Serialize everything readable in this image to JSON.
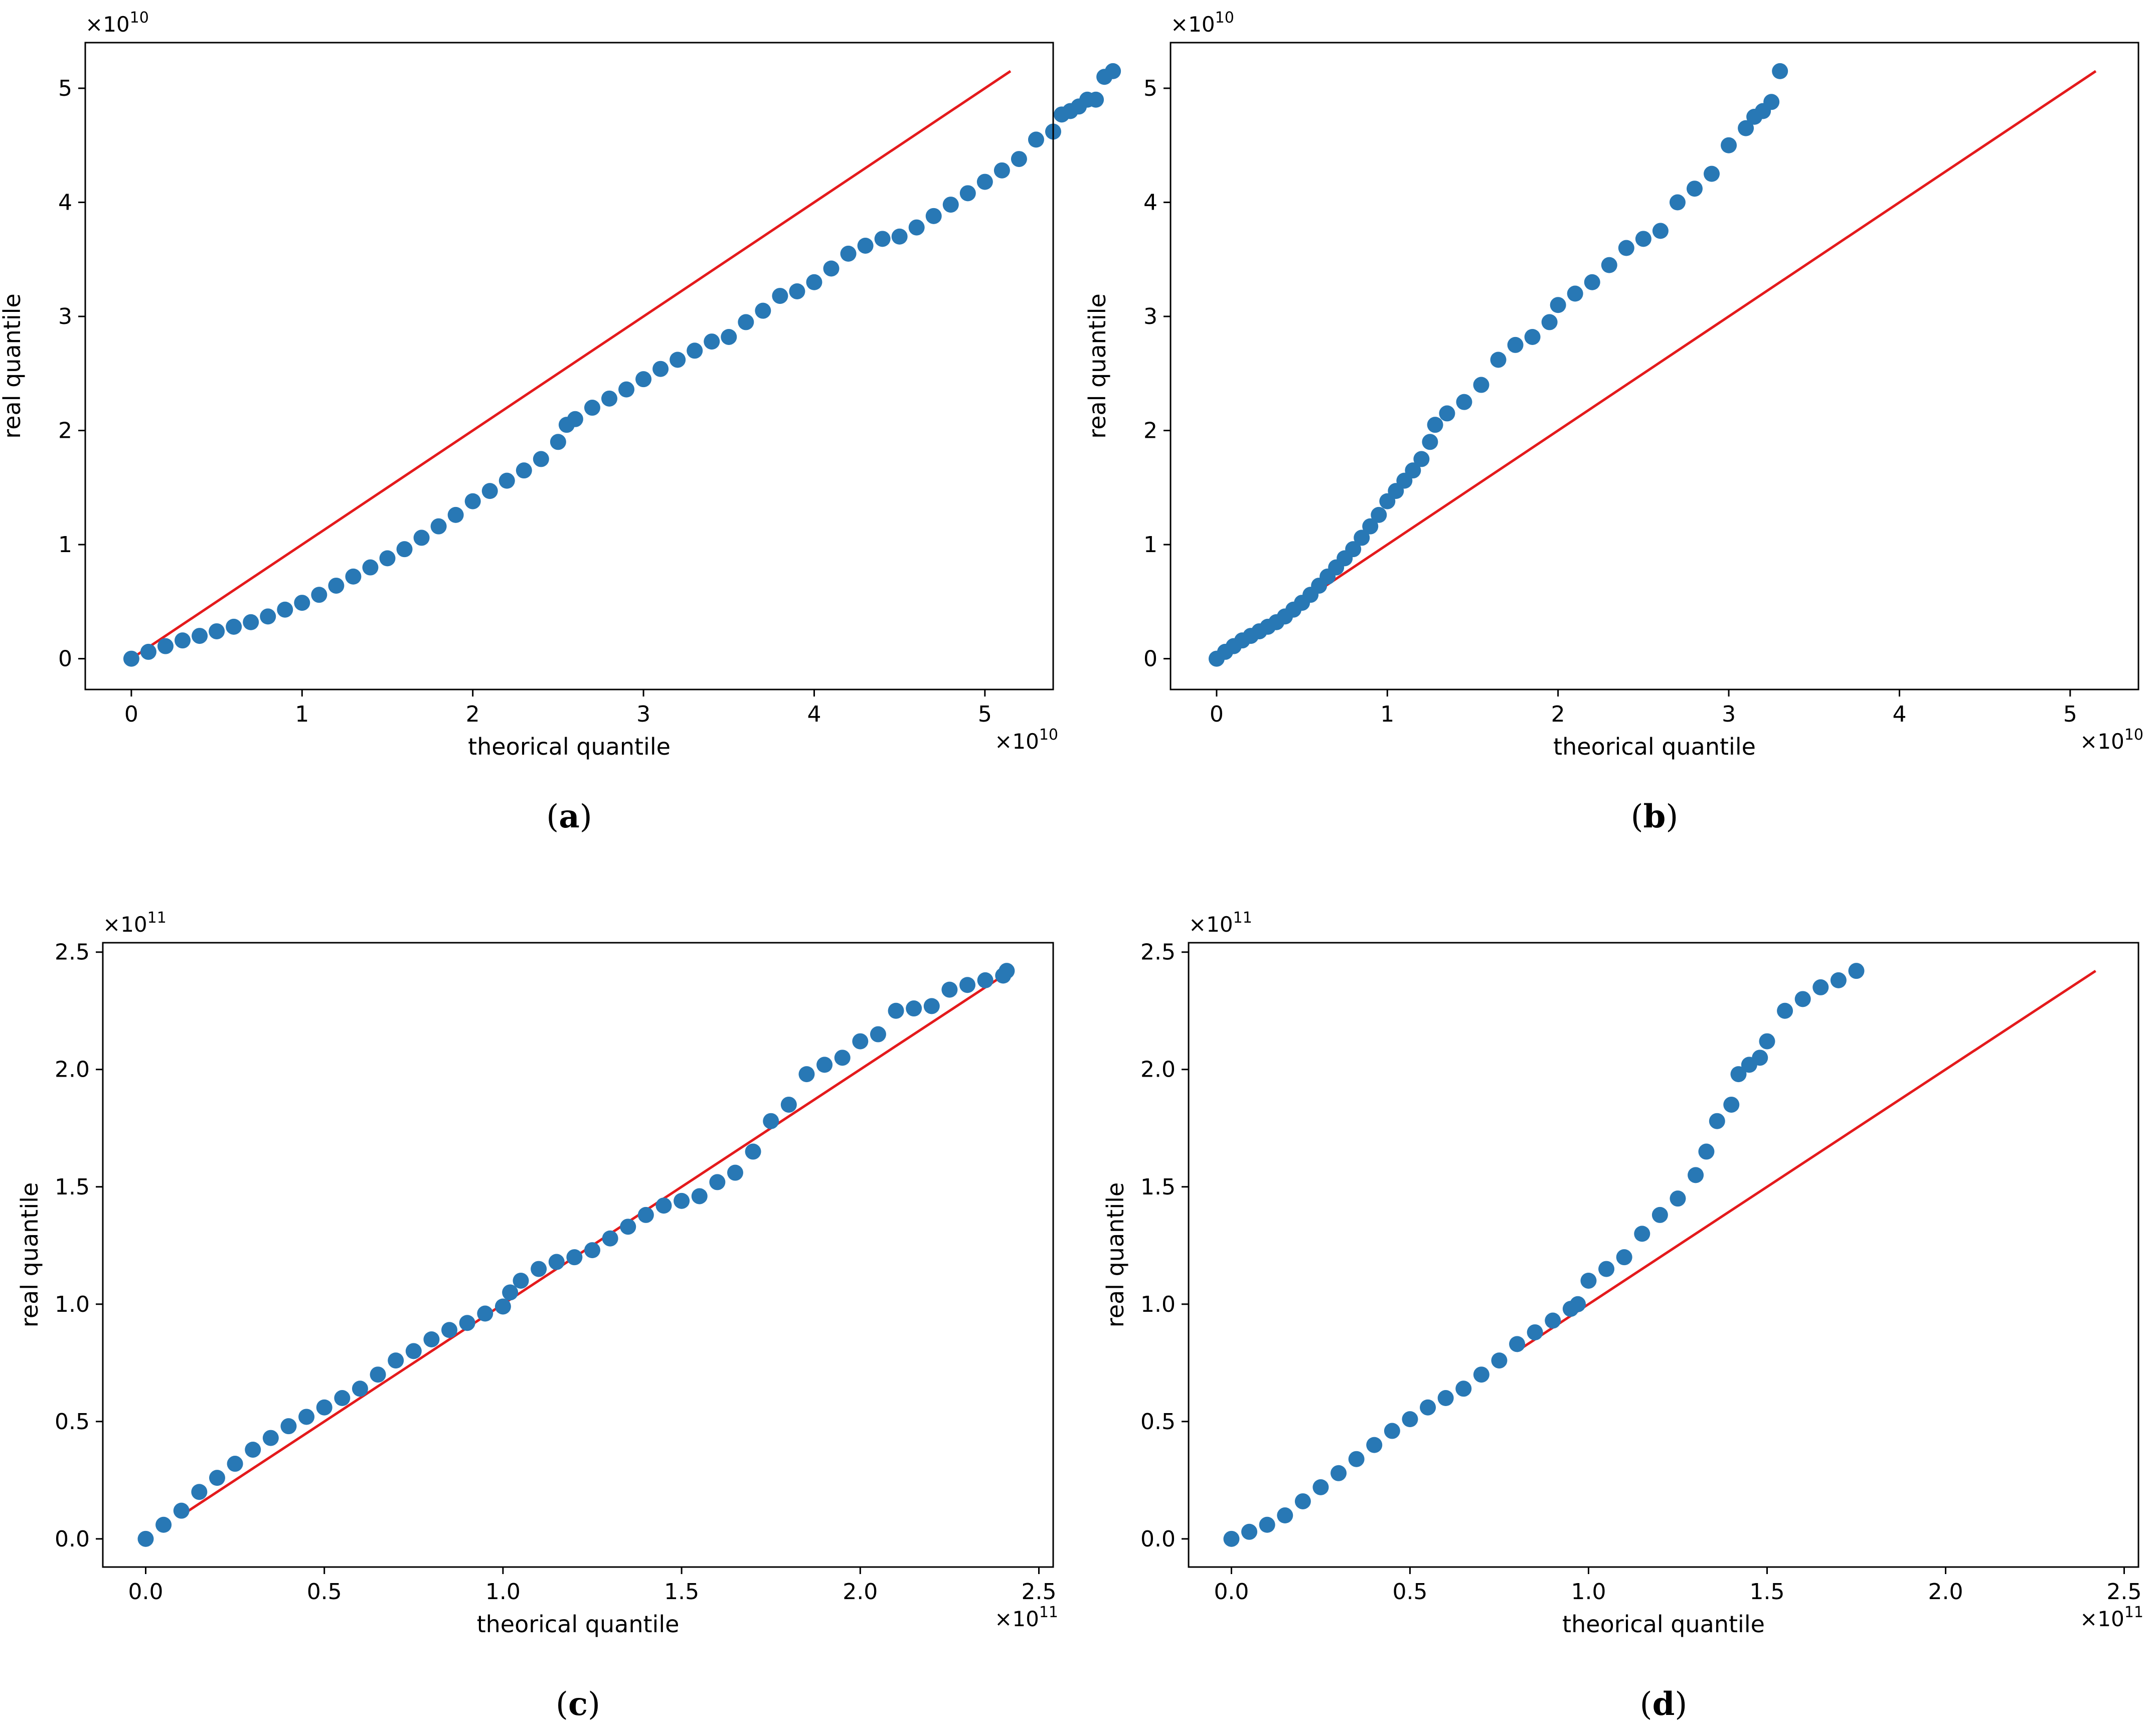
{
  "colors": {
    "points": "#2878b5",
    "reference_line": "#e41a1c",
    "axes": "#000000"
  },
  "chart_data": [
    {
      "id": "a",
      "type": "scatter",
      "caption": "a",
      "xlabel": "theorical quantile",
      "ylabel": "real quantile",
      "x_multiplier": "×10",
      "x_multiplier_exp": "10",
      "y_multiplier": "×10",
      "y_multiplier_exp": "10",
      "xlim": [
        -0.27,
        5.4
      ],
      "ylim": [
        -0.27,
        5.4
      ],
      "xticks": [
        0,
        1,
        2,
        3,
        4,
        5
      ],
      "yticks": [
        0,
        1,
        2,
        3,
        4,
        5
      ],
      "xtick_labels": [
        "0",
        "1",
        "2",
        "3",
        "4",
        "5"
      ],
      "ytick_labels": [
        "0",
        "1",
        "2",
        "3",
        "4",
        "5"
      ],
      "reference_line": [
        [
          0,
          0
        ],
        [
          5.15,
          5.15
        ]
      ],
      "series": [
        {
          "name": "quantiles",
          "points": [
            [
              0,
              0
            ],
            [
              0.1,
              0.06
            ],
            [
              0.2,
              0.11
            ],
            [
              0.3,
              0.16
            ],
            [
              0.4,
              0.2
            ],
            [
              0.5,
              0.24
            ],
            [
              0.6,
              0.28
            ],
            [
              0.7,
              0.32
            ],
            [
              0.8,
              0.37
            ],
            [
              0.9,
              0.43
            ],
            [
              1.0,
              0.49
            ],
            [
              1.1,
              0.56
            ],
            [
              1.2,
              0.64
            ],
            [
              1.3,
              0.72
            ],
            [
              1.4,
              0.8
            ],
            [
              1.5,
              0.88
            ],
            [
              1.6,
              0.96
            ],
            [
              1.7,
              1.06
            ],
            [
              1.8,
              1.16
            ],
            [
              1.9,
              1.26
            ],
            [
              2.0,
              1.38
            ],
            [
              2.1,
              1.47
            ],
            [
              2.2,
              1.56
            ],
            [
              2.3,
              1.65
            ],
            [
              2.4,
              1.75
            ],
            [
              2.5,
              1.9
            ],
            [
              2.55,
              2.05
            ],
            [
              2.6,
              2.1
            ],
            [
              2.7,
              2.2
            ],
            [
              2.8,
              2.28
            ],
            [
              2.9,
              2.36
            ],
            [
              3.0,
              2.45
            ],
            [
              3.1,
              2.54
            ],
            [
              3.2,
              2.62
            ],
            [
              3.3,
              2.7
            ],
            [
              3.4,
              2.78
            ],
            [
              3.5,
              2.82
            ],
            [
              3.6,
              2.95
            ],
            [
              3.7,
              3.05
            ],
            [
              3.8,
              3.18
            ],
            [
              3.9,
              3.22
            ],
            [
              4.0,
              3.3
            ],
            [
              4.1,
              3.42
            ],
            [
              4.2,
              3.55
            ],
            [
              4.3,
              3.62
            ],
            [
              4.4,
              3.68
            ],
            [
              4.5,
              3.7
            ],
            [
              4.6,
              3.78
            ],
            [
              4.7,
              3.88
            ],
            [
              4.8,
              3.98
            ],
            [
              4.9,
              4.08
            ],
            [
              5.0,
              4.18
            ],
            [
              5.1,
              4.28
            ],
            [
              5.2,
              4.38
            ],
            [
              5.3,
              4.55
            ],
            [
              5.4,
              4.62
            ],
            [
              5.45,
              4.77
            ],
            [
              5.5,
              4.8
            ],
            [
              5.55,
              4.84
            ],
            [
              5.6,
              4.9
            ],
            [
              5.65,
              4.9
            ],
            [
              5.7,
              5.1
            ],
            [
              5.75,
              5.15
            ]
          ]
        }
      ]
    },
    {
      "id": "b",
      "type": "scatter",
      "caption": "b",
      "xlabel": "theorical quantile",
      "ylabel": "real quantile",
      "x_multiplier": "×10",
      "x_multiplier_exp": "10",
      "y_multiplier": "×10",
      "y_multiplier_exp": "10",
      "xlim": [
        -0.27,
        5.4
      ],
      "ylim": [
        -0.27,
        5.4
      ],
      "xticks": [
        0,
        1,
        2,
        3,
        4,
        5
      ],
      "yticks": [
        0,
        1,
        2,
        3,
        4,
        5
      ],
      "xtick_labels": [
        "0",
        "1",
        "2",
        "3",
        "4",
        "5"
      ],
      "ytick_labels": [
        "0",
        "1",
        "2",
        "3",
        "4",
        "5"
      ],
      "reference_line": [
        [
          0,
          0
        ],
        [
          5.15,
          5.15
        ]
      ],
      "series": [
        {
          "name": "quantiles",
          "points": [
            [
              0,
              0
            ],
            [
              0.05,
              0.06
            ],
            [
              0.1,
              0.11
            ],
            [
              0.15,
              0.16
            ],
            [
              0.2,
              0.2
            ],
            [
              0.25,
              0.24
            ],
            [
              0.3,
              0.28
            ],
            [
              0.35,
              0.32
            ],
            [
              0.4,
              0.37
            ],
            [
              0.45,
              0.43
            ],
            [
              0.5,
              0.49
            ],
            [
              0.55,
              0.56
            ],
            [
              0.6,
              0.64
            ],
            [
              0.65,
              0.72
            ],
            [
              0.7,
              0.8
            ],
            [
              0.75,
              0.88
            ],
            [
              0.8,
              0.96
            ],
            [
              0.85,
              1.06
            ],
            [
              0.9,
              1.16
            ],
            [
              0.95,
              1.26
            ],
            [
              1.0,
              1.38
            ],
            [
              1.05,
              1.47
            ],
            [
              1.1,
              1.56
            ],
            [
              1.15,
              1.65
            ],
            [
              1.2,
              1.75
            ],
            [
              1.25,
              1.9
            ],
            [
              1.28,
              2.05
            ],
            [
              1.35,
              2.15
            ],
            [
              1.45,
              2.25
            ],
            [
              1.55,
              2.4
            ],
            [
              1.65,
              2.62
            ],
            [
              1.75,
              2.75
            ],
            [
              1.85,
              2.82
            ],
            [
              1.95,
              2.95
            ],
            [
              2.0,
              3.1
            ],
            [
              2.1,
              3.2
            ],
            [
              2.2,
              3.3
            ],
            [
              2.3,
              3.45
            ],
            [
              2.4,
              3.6
            ],
            [
              2.5,
              3.68
            ],
            [
              2.6,
              3.75
            ],
            [
              2.7,
              4.0
            ],
            [
              2.8,
              4.12
            ],
            [
              2.9,
              4.25
            ],
            [
              3.0,
              4.5
            ],
            [
              3.1,
              4.65
            ],
            [
              3.15,
              4.75
            ],
            [
              3.2,
              4.8
            ],
            [
              3.25,
              4.88
            ],
            [
              3.3,
              5.15
            ]
          ]
        }
      ]
    },
    {
      "id": "c",
      "type": "scatter",
      "caption": "c",
      "xlabel": "theorical quantile",
      "ylabel": "real quantile",
      "x_multiplier": "×10",
      "x_multiplier_exp": "11",
      "y_multiplier": "×10",
      "y_multiplier_exp": "11",
      "xlim": [
        -0.12,
        2.54
      ],
      "ylim": [
        -0.12,
        2.54
      ],
      "xticks": [
        0,
        0.5,
        1.0,
        1.5,
        2.0,
        2.5
      ],
      "yticks": [
        0,
        0.5,
        1.0,
        1.5,
        2.0,
        2.5
      ],
      "xtick_labels": [
        "0.0",
        "0.5",
        "1.0",
        "1.5",
        "2.0",
        "2.5"
      ],
      "ytick_labels": [
        "0.0",
        "0.5",
        "1.0",
        "1.5",
        "2.0",
        "2.5"
      ],
      "reference_line": [
        [
          0.1,
          0.1
        ],
        [
          2.42,
          2.42
        ]
      ],
      "series": [
        {
          "name": "quantiles",
          "points": [
            [
              0,
              0
            ],
            [
              0.05,
              0.06
            ],
            [
              0.1,
              0.12
            ],
            [
              0.15,
              0.2
            ],
            [
              0.2,
              0.26
            ],
            [
              0.25,
              0.32
            ],
            [
              0.3,
              0.38
            ],
            [
              0.35,
              0.43
            ],
            [
              0.4,
              0.48
            ],
            [
              0.45,
              0.52
            ],
            [
              0.5,
              0.56
            ],
            [
              0.55,
              0.6
            ],
            [
              0.6,
              0.64
            ],
            [
              0.65,
              0.7
            ],
            [
              0.7,
              0.76
            ],
            [
              0.75,
              0.8
            ],
            [
              0.8,
              0.85
            ],
            [
              0.85,
              0.89
            ],
            [
              0.9,
              0.92
            ],
            [
              0.95,
              0.96
            ],
            [
              1.0,
              0.99
            ],
            [
              1.02,
              1.05
            ],
            [
              1.05,
              1.1
            ],
            [
              1.1,
              1.15
            ],
            [
              1.15,
              1.18
            ],
            [
              1.2,
              1.2
            ],
            [
              1.25,
              1.23
            ],
            [
              1.3,
              1.28
            ],
            [
              1.35,
              1.33
            ],
            [
              1.4,
              1.38
            ],
            [
              1.45,
              1.42
            ],
            [
              1.5,
              1.44
            ],
            [
              1.55,
              1.46
            ],
            [
              1.6,
              1.52
            ],
            [
              1.65,
              1.56
            ],
            [
              1.7,
              1.65
            ],
            [
              1.75,
              1.78
            ],
            [
              1.8,
              1.85
            ],
            [
              1.85,
              1.98
            ],
            [
              1.9,
              2.02
            ],
            [
              1.95,
              2.05
            ],
            [
              2.0,
              2.12
            ],
            [
              2.05,
              2.15
            ],
            [
              2.1,
              2.25
            ],
            [
              2.15,
              2.26
            ],
            [
              2.2,
              2.27
            ],
            [
              2.25,
              2.34
            ],
            [
              2.3,
              2.36
            ],
            [
              2.35,
              2.38
            ],
            [
              2.4,
              2.4
            ],
            [
              2.41,
              2.42
            ]
          ]
        }
      ]
    },
    {
      "id": "d",
      "type": "scatter",
      "caption": "d",
      "xlabel": "theorical quantile",
      "ylabel": "real quantile",
      "x_multiplier": "×10",
      "x_multiplier_exp": "11",
      "y_multiplier": "×10",
      "y_multiplier_exp": "11",
      "xlim": [
        -0.12,
        2.54
      ],
      "ylim": [
        -0.12,
        2.54
      ],
      "xticks": [
        0,
        0.5,
        1.0,
        1.5,
        2.0,
        2.5
      ],
      "yticks": [
        0,
        0.5,
        1.0,
        1.5,
        2.0,
        2.5
      ],
      "xtick_labels": [
        "0.0",
        "0.5",
        "1.0",
        "1.5",
        "2.0",
        "2.5"
      ],
      "ytick_labels": [
        "0.0",
        "0.5",
        "1.0",
        "1.5",
        "2.0",
        "2.5"
      ],
      "reference_line": [
        [
          0.8,
          0.8
        ],
        [
          2.42,
          2.42
        ]
      ],
      "series": [
        {
          "name": "quantiles",
          "points": [
            [
              0,
              0
            ],
            [
              0.05,
              0.03
            ],
            [
              0.1,
              0.06
            ],
            [
              0.15,
              0.1
            ],
            [
              0.2,
              0.16
            ],
            [
              0.25,
              0.22
            ],
            [
              0.3,
              0.28
            ],
            [
              0.35,
              0.34
            ],
            [
              0.4,
              0.4
            ],
            [
              0.45,
              0.46
            ],
            [
              0.5,
              0.51
            ],
            [
              0.55,
              0.56
            ],
            [
              0.6,
              0.6
            ],
            [
              0.65,
              0.64
            ],
            [
              0.7,
              0.7
            ],
            [
              0.75,
              0.76
            ],
            [
              0.8,
              0.83
            ],
            [
              0.85,
              0.88
            ],
            [
              0.9,
              0.93
            ],
            [
              0.95,
              0.98
            ],
            [
              0.97,
              1.0
            ],
            [
              1.0,
              1.1
            ],
            [
              1.05,
              1.15
            ],
            [
              1.1,
              1.2
            ],
            [
              1.15,
              1.3
            ],
            [
              1.2,
              1.38
            ],
            [
              1.25,
              1.45
            ],
            [
              1.3,
              1.55
            ],
            [
              1.33,
              1.65
            ],
            [
              1.36,
              1.78
            ],
            [
              1.4,
              1.85
            ],
            [
              1.42,
              1.98
            ],
            [
              1.45,
              2.02
            ],
            [
              1.48,
              2.05
            ],
            [
              1.5,
              2.12
            ],
            [
              1.55,
              2.25
            ],
            [
              1.6,
              2.3
            ],
            [
              1.65,
              2.35
            ],
            [
              1.7,
              2.38
            ],
            [
              1.75,
              2.42
            ]
          ]
        }
      ]
    }
  ]
}
